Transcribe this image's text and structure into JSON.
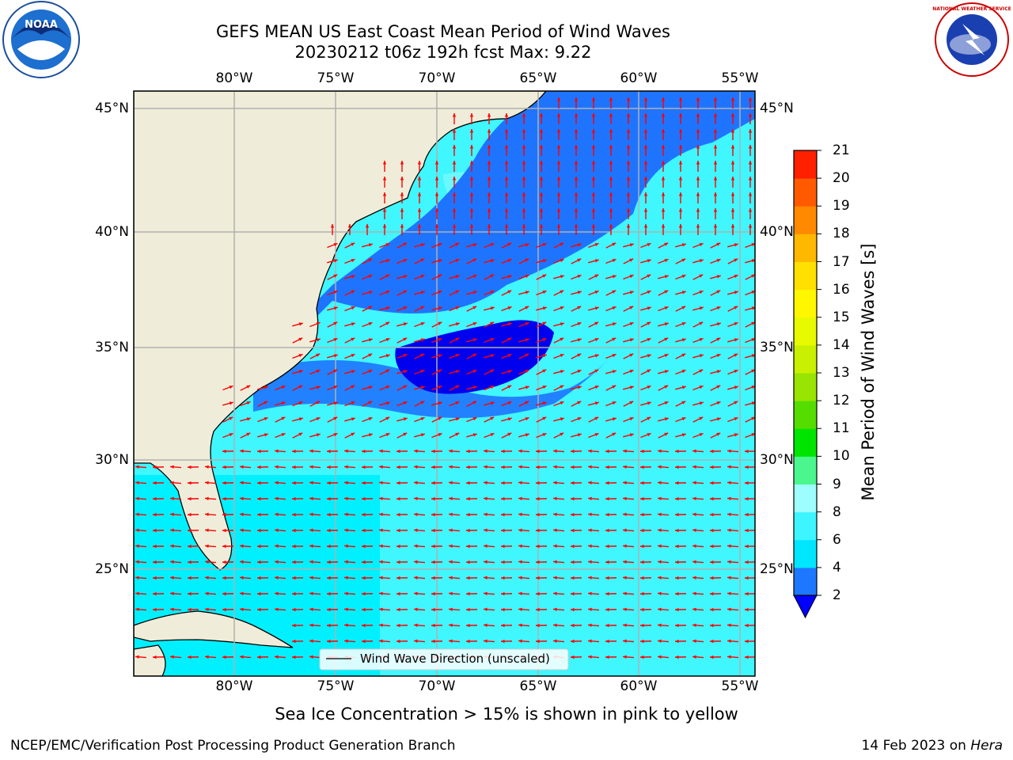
{
  "header": {
    "title_line1": "GEFS MEAN US East Coast Mean Period of Wind Waves",
    "title_line2": "20230212 t06z 192h fcst   Max: 9.22"
  },
  "logos": {
    "left": {
      "icon": "noaa-logo",
      "text": "NOAA"
    },
    "right": {
      "icon": "nws-logo",
      "text": "NATIONAL WEATHER SERVICE"
    }
  },
  "map": {
    "longitude_labels": [
      "80°W",
      "75°W",
      "70°W",
      "65°W",
      "60°W",
      "55°W"
    ],
    "latitude_labels": [
      "45°N",
      "40°N",
      "35°N",
      "30°N",
      "25°N"
    ],
    "legend_label": "Wind Wave Direction (unscaled)",
    "colors": {
      "land": "#efedd9",
      "coast": "#000000",
      "grid": "#b0b0b0",
      "arrow": "#ff0000",
      "band_2_4": "#1f74ff",
      "band_4_6": "#00f0ff",
      "band_6_8": "#40f6ff",
      "band_below_2": "#0000ee"
    }
  },
  "colorbar": {
    "title": "Mean Period of Wind Waves [s]",
    "ticks": [
      "2",
      "4",
      "6",
      "8",
      "9",
      "10",
      "11",
      "12",
      "13",
      "14",
      "15",
      "16",
      "17",
      "18",
      "19",
      "20",
      "21"
    ],
    "colors": [
      "#1e78ff",
      "#00e6ff",
      "#3cf5ff",
      "#9dfdff",
      "#4cf68e",
      "#00e500",
      "#55dd00",
      "#99e400",
      "#c8f000",
      "#e7fa00",
      "#fff700",
      "#ffe000",
      "#ffb800",
      "#ff8a00",
      "#ff5a00",
      "#ff2000"
    ],
    "under_color": "#0000ff"
  },
  "footer": {
    "sea_ice_note": "Sea Ice Concentration > 15% is shown in pink to yellow",
    "credit": "NCEP/EMC/Verification Post Processing Product Generation Branch",
    "date": "14 Feb 2023 on",
    "system": "Hera"
  }
}
